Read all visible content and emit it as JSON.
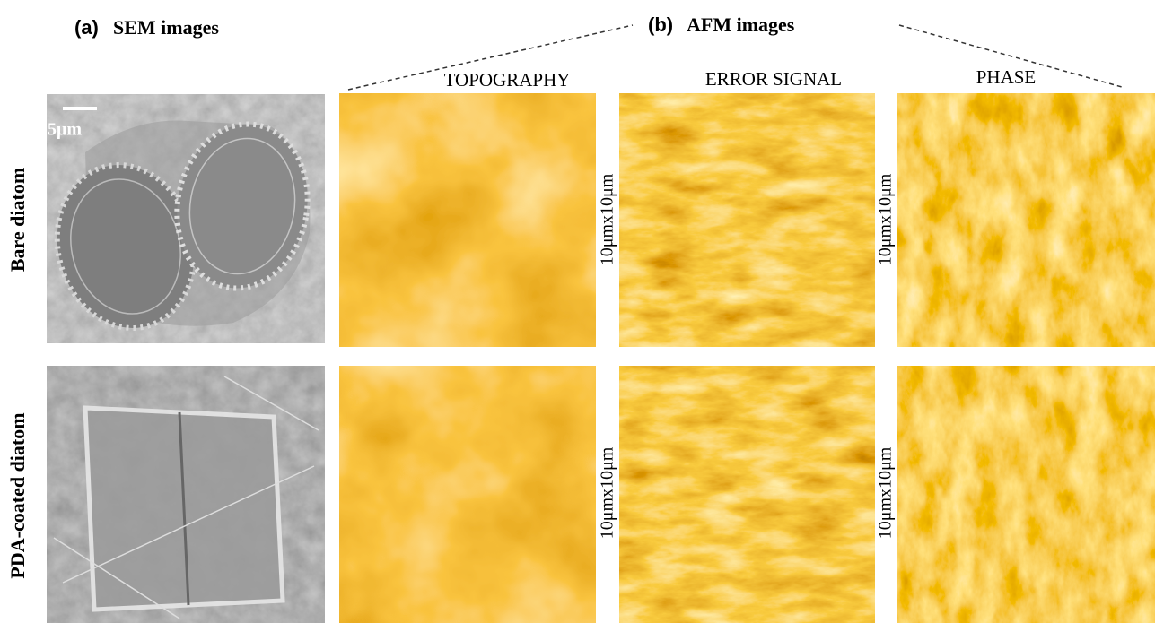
{
  "panels": {
    "sem": {
      "label": "(a)",
      "title": "SEM images",
      "scale_bar": "5μm"
    },
    "afm": {
      "label": "(b)",
      "title": "AFM images",
      "columns": [
        "TOPOGRAPHY",
        "ERROR SIGNAL",
        "PHASE"
      ]
    }
  },
  "rows": [
    "Bare diatom",
    "PDA-coated diatom"
  ],
  "scan_size_labels": [
    [
      "10μmx10μm",
      "10μmx10μm"
    ],
    [
      "10μmx10μm",
      "10μmx10μm"
    ]
  ]
}
